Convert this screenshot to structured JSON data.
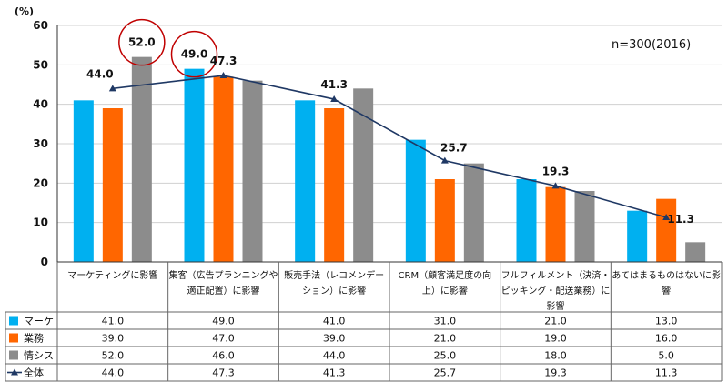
{
  "chart_data": {
    "type": "bar",
    "ylabel": "(%)",
    "ylim": [
      0,
      60
    ],
    "yticks": [
      0,
      10,
      20,
      30,
      40,
      50,
      60
    ],
    "grid": true,
    "note": "n=300(2016)",
    "categories": [
      "マーケティングに影響",
      "集客（広告プランニングや適正配置）に影響",
      "販売手法（レコメンデーション）に影響",
      "CRM（顧客満足度の向上）に影響",
      "フルフィルメント（決済・ピッキング・配送業務）に影響",
      "あてはまるものはないに影響"
    ],
    "category_lines": [
      [
        "マーケティングに影響"
      ],
      [
        "集客（広告プランニングや",
        "適正配置）に影響"
      ],
      [
        "販売手法（レコメンデー",
        "ション）に影響"
      ],
      [
        "CRM（顧客満足度の向",
        "上）に影響"
      ],
      [
        "フルフィルメント（決済・",
        "ピッキング・配送業務）に",
        "影響"
      ],
      [
        "あてはまるものはないに影",
        "響"
      ]
    ],
    "series": [
      {
        "name": "マーケ",
        "type": "bar",
        "color": "#00B0F0",
        "values": [
          41.0,
          49.0,
          41.0,
          31.0,
          21.0,
          13.0
        ]
      },
      {
        "name": "業務",
        "type": "bar",
        "color": "#FF6600",
        "values": [
          39.0,
          47.0,
          39.0,
          21.0,
          19.0,
          16.0
        ]
      },
      {
        "name": "情シス",
        "type": "bar",
        "color": "#8C8C8C",
        "values": [
          52.0,
          46.0,
          44.0,
          25.0,
          18.0,
          5.0
        ]
      },
      {
        "name": "全体",
        "type": "line",
        "color": "#1F3864",
        "values": [
          44.0,
          47.3,
          41.3,
          25.7,
          19.3,
          11.3
        ]
      }
    ],
    "data_labels": [
      {
        "series": 3,
        "index": 0,
        "text": "44.0"
      },
      {
        "series": 2,
        "index": 0,
        "text": "52.0",
        "circled": true
      },
      {
        "series": 0,
        "index": 1,
        "text": "49.0",
        "circled": true
      },
      {
        "series": 3,
        "index": 1,
        "text": "47.3"
      },
      {
        "series": 3,
        "index": 2,
        "text": "41.3"
      },
      {
        "series": 3,
        "index": 3,
        "text": "25.7"
      },
      {
        "series": 3,
        "index": 4,
        "text": "19.3"
      },
      {
        "series": 3,
        "index": 5,
        "text": "11.3"
      }
    ],
    "table": [
      [
        "41.0",
        "49.0",
        "41.0",
        "31.0",
        "21.0",
        "13.0"
      ],
      [
        "39.0",
        "47.0",
        "39.0",
        "21.0",
        "19.0",
        "16.0"
      ],
      [
        "52.0",
        "46.0",
        "44.0",
        "25.0",
        "18.0",
        "5.0"
      ],
      [
        "44.0",
        "47.3",
        "41.3",
        "25.7",
        "19.3",
        "11.3"
      ]
    ],
    "highlight_color": "#C00000"
  }
}
